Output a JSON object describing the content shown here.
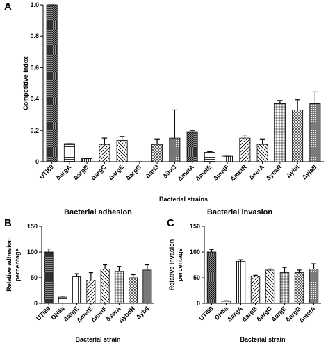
{
  "chart_data": [
    {
      "type": "bar",
      "panel": "A",
      "y_label": [
        "Competitive index"
      ],
      "x_label": "Bacterial strains",
      "categories": [
        "UTI89",
        "ΔargA",
        "ΔargB",
        "ΔargC",
        "ΔargE",
        "ΔargG",
        "ΔartJ",
        "ΔilvG",
        "ΔmetA",
        "ΔmetE",
        "ΔmetF",
        "ΔmetR",
        "ΔserA",
        "ΔyeaR",
        "ΔybiI",
        "ΔyjaB"
      ],
      "values": [
        1.0,
        0.115,
        0.02,
        0.11,
        0.135,
        0,
        0.11,
        0.15,
        0.19,
        0.06,
        0.035,
        0.15,
        0.11,
        0.37,
        0.33,
        0.37
      ],
      "errors": [
        0,
        0,
        0,
        0.04,
        0.025,
        0,
        0.035,
        0.18,
        0.01,
        0.005,
        0,
        0.02,
        0.035,
        0.02,
        0.065,
        0.075
      ],
      "ylim": [
        0,
        1
      ],
      "yticks": [
        0,
        0.2,
        0.4,
        0.6,
        0.8,
        {
          "value": 1,
          "label": "1.0"
        }
      ],
      "color": "#000000"
    },
    {
      "type": "bar",
      "panel": "B",
      "title": "Bacterial adhesion",
      "y_label": [
        "Relative adhesion",
        "percentage"
      ],
      "x_label": "Bacterial strain",
      "categories": [
        "UTI89",
        "DH5a",
        "ΔargE",
        "ΔmetE",
        "ΔmetF",
        "ΔserA",
        "ΔybdH",
        "ΔybiI"
      ],
      "values": [
        100,
        12,
        52,
        45,
        67,
        62,
        50,
        65
      ],
      "errors": [
        6,
        2,
        6,
        15,
        8,
        10,
        6,
        10
      ],
      "ylim": [
        0,
        150
      ],
      "yticks": [
        0,
        50,
        100,
        150
      ],
      "color": "#000000"
    },
    {
      "type": "bar",
      "panel": "C",
      "title": "Bacterial invasion",
      "y_label": [
        "Relative invasion",
        "percentage"
      ],
      "x_label": "Bacterial strain",
      "categories": [
        "UTI89",
        "DH5a",
        "ΔargA",
        "ΔargB",
        "ΔargC",
        "ΔargE",
        "ΔargG",
        "ΔmetA"
      ],
      "values": [
        100,
        4,
        82,
        53,
        65,
        60,
        60,
        67
      ],
      "errors": [
        5,
        1,
        3,
        2,
        2,
        10,
        5,
        10
      ],
      "ylim": [
        0,
        150
      ],
      "yticks": [
        0,
        50,
        100,
        150
      ],
      "color": "#000000"
    }
  ]
}
